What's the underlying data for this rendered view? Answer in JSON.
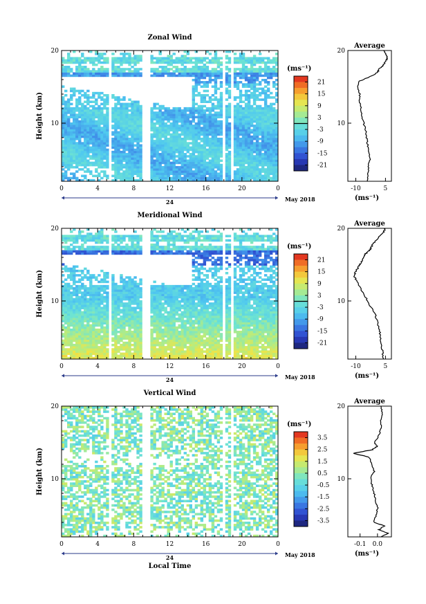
{
  "chart_data": [
    {
      "type": "heatmap",
      "title": "Zonal Wind",
      "ylabel": "Height (km)",
      "ylim": [
        2,
        20
      ],
      "yticks": [
        "20",
        "10"
      ],
      "xticks": [
        "0",
        "4",
        "8",
        "12",
        "16",
        "20",
        "0"
      ],
      "xlim": [
        0,
        24
      ],
      "date_labels": [
        "24",
        "May 2018"
      ],
      "colorbar": {
        "unit": "(ms⁻¹)",
        "ticks": [
          "21",
          "15",
          "9",
          "3",
          "-3",
          "-9",
          "-15",
          "-21"
        ],
        "range": [
          -24,
          24
        ]
      },
      "average": {
        "title": "Average",
        "xlabel": "(ms⁻¹)",
        "xticks": [
          "-10",
          "5"
        ],
        "xlim": [
          -14,
          8
        ],
        "yticks": [
          "20",
          "10"
        ],
        "ylim": [
          2,
          20
        ],
        "profile": {
          "height": [
            2,
            3,
            4,
            5,
            6,
            7,
            8,
            9,
            10,
            11,
            12,
            13,
            14,
            15,
            15.8,
            16.5,
            17,
            17.5,
            18,
            18.5,
            19,
            19.5,
            20
          ],
          "value": [
            -4,
            -4,
            -3.5,
            -3,
            -3.5,
            -4,
            -4.5,
            -5,
            -6,
            -7,
            -7.5,
            -8,
            -8,
            -9,
            -8,
            -2,
            1,
            2,
            4,
            5,
            6,
            5,
            4
          ]
        }
      },
      "color_hint": "mostly -3 to -12 (light to medium blue) below 12 km, near 0 above 17 km"
    },
    {
      "type": "heatmap",
      "title": "Meridional Wind",
      "ylabel": "Height (km)",
      "ylim": [
        2,
        20
      ],
      "yticks": [
        "20",
        "10"
      ],
      "xticks": [
        "0",
        "4",
        "8",
        "12",
        "16",
        "20",
        "0"
      ],
      "xlim": [
        0,
        24
      ],
      "date_labels": [
        "24",
        "May 2018"
      ],
      "colorbar": {
        "unit": "(ms⁻¹)",
        "ticks": [
          "21",
          "15",
          "9",
          "3",
          "-3",
          "-9",
          "-15",
          "-21"
        ],
        "range": [
          -24,
          24
        ]
      },
      "average": {
        "title": "Average",
        "xlabel": "(ms⁻¹)",
        "xticks": [
          "-10",
          "5"
        ],
        "xlim": [
          -14,
          8
        ],
        "yticks": [
          "20",
          "10"
        ],
        "ylim": [
          2,
          20
        ],
        "profile": {
          "height": [
            2,
            3,
            4,
            5,
            6,
            7,
            8,
            9,
            10,
            11,
            12,
            13,
            13.5,
            14,
            14.5,
            15,
            15.5,
            16,
            16.5,
            17,
            17.5,
            18,
            18.5,
            19,
            19.5,
            20
          ],
          "value": [
            4,
            3.5,
            3,
            2.5,
            2,
            1,
            0,
            -2,
            -4,
            -6,
            -8,
            -10,
            -11,
            -10,
            -9,
            -8,
            -7,
            -6,
            -5,
            -3,
            -2,
            -1,
            1,
            2,
            4,
            5
          ]
        }
      }
    },
    {
      "type": "heatmap",
      "title": "Vertical Wind",
      "ylabel": "Height (km)",
      "xlabel": "Local Time",
      "ylim": [
        2,
        20
      ],
      "yticks": [
        "20",
        "10"
      ],
      "xticks": [
        "0",
        "4",
        "8",
        "12",
        "16",
        "20",
        "0"
      ],
      "xlim": [
        0,
        24
      ],
      "date_labels": [
        "24",
        "May 2018"
      ],
      "colorbar": {
        "unit": "(ms⁻¹)",
        "ticks": [
          "3.5",
          "2.5",
          "1.5",
          "0.5",
          "-0.5",
          "-1.5",
          "-2.5",
          "-3.5"
        ],
        "range": [
          -4,
          4
        ]
      },
      "average": {
        "title": "Average",
        "xlabel": "(ms⁻¹)",
        "xticks": [
          "-0.1",
          "0.0"
        ],
        "xlim": [
          -0.17,
          0.08
        ],
        "yticks": [
          "20",
          "10"
        ],
        "ylim": [
          2,
          20
        ],
        "profile": {
          "height": [
            2,
            2.5,
            3,
            3.5,
            4,
            5,
            6,
            7,
            8,
            9,
            10,
            11,
            12,
            13,
            13.5,
            14,
            14.5,
            15,
            16,
            17,
            18,
            19,
            20
          ],
          "value": [
            0.02,
            0.06,
            0.01,
            0.04,
            -0.02,
            -0.01,
            0.0,
            -0.01,
            -0.02,
            -0.03,
            -0.04,
            -0.02,
            -0.03,
            -0.05,
            -0.14,
            -0.03,
            0.0,
            -0.02,
            0.01,
            0.02,
            0.02,
            0.03,
            0.02
          ]
        }
      }
    }
  ]
}
